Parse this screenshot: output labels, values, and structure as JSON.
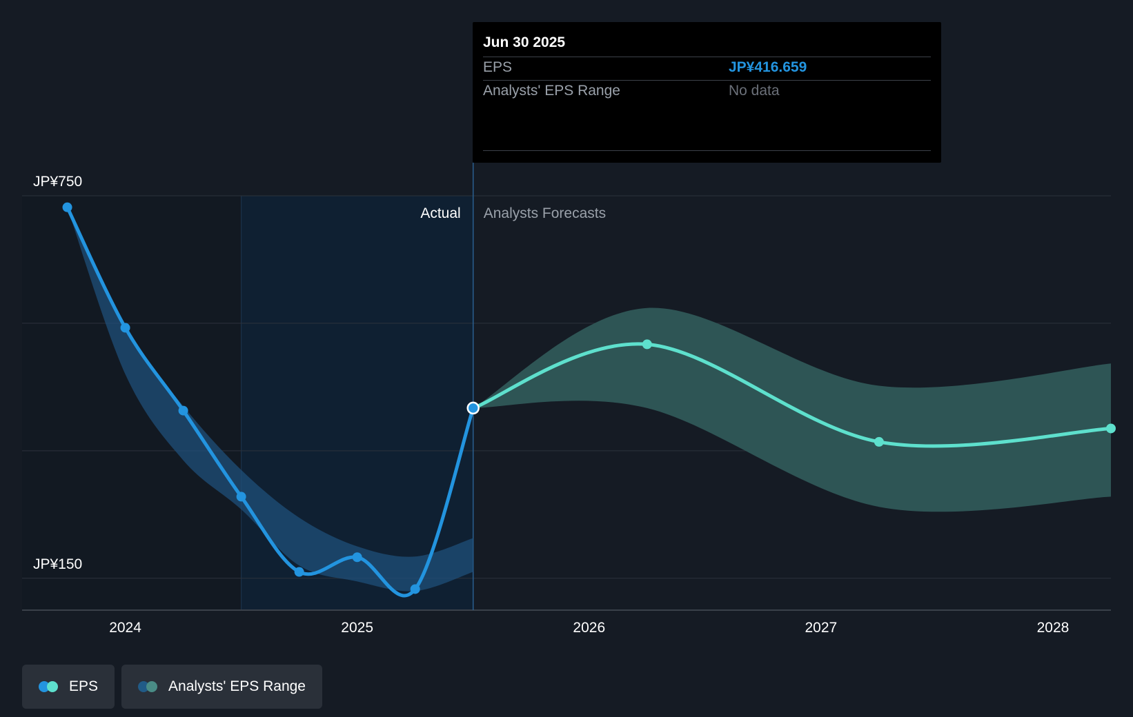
{
  "tooltip": {
    "date": "Jun 30 2025",
    "eps_label": "EPS",
    "eps_value": "JP¥416.659",
    "range_label": "Analysts' EPS Range",
    "range_value": "No data"
  },
  "legend": {
    "eps_label": "EPS",
    "range_label": "Analysts' EPS Range"
  },
  "colors": {
    "background": "#151b24",
    "actual_line": "#2394df",
    "forecast_line": "#5ee0cd",
    "actual_band": "#1f4f7a",
    "forecast_band": "#2e5555",
    "past_shade": "#0f2032"
  },
  "chart_data": {
    "type": "line",
    "y_axis_labels": [
      {
        "value": 750,
        "text": "JP¥750"
      },
      {
        "value": 150,
        "text": "JP¥150"
      }
    ],
    "x_ticks": [
      {
        "x": 2024.0,
        "label": "2024"
      },
      {
        "x": 2025.0,
        "label": "2025"
      },
      {
        "x": 2026.0,
        "label": "2026"
      },
      {
        "x": 2027.0,
        "label": "2027"
      },
      {
        "x": 2028.0,
        "label": "2028"
      }
    ],
    "xlim": [
      2023.555,
      2028.25
    ],
    "ylim": [
      100,
      750
    ],
    "gridlines": [
      150,
      350,
      550,
      750
    ],
    "region_labels": {
      "actual": "Actual",
      "forecast": "Analysts Forecasts"
    },
    "actual_shade_start": 2024.5,
    "divider_x": 2025.5,
    "series": [
      {
        "name": "EPS",
        "segment": "actual",
        "points": [
          {
            "x": 2023.75,
            "y": 732
          },
          {
            "x": 2024.0,
            "y": 543
          },
          {
            "x": 2024.25,
            "y": 413
          },
          {
            "x": 2024.5,
            "y": 278
          },
          {
            "x": 2024.75,
            "y": 160
          },
          {
            "x": 2025.0,
            "y": 183
          },
          {
            "x": 2025.25,
            "y": 133
          },
          {
            "x": 2025.5,
            "y": 417
          }
        ]
      },
      {
        "name": "EPS",
        "segment": "forecast",
        "points": [
          {
            "x": 2025.5,
            "y": 417
          },
          {
            "x": 2026.25,
            "y": 517
          },
          {
            "x": 2027.25,
            "y": 364
          },
          {
            "x": 2028.25,
            "y": 385
          }
        ]
      }
    ],
    "ranges": [
      {
        "name": "Analysts' EPS Range",
        "segment": "actual",
        "upper": [
          {
            "x": 2023.75,
            "y": 732
          },
          {
            "x": 2024.0,
            "y": 543
          },
          {
            "x": 2024.25,
            "y": 420
          },
          {
            "x": 2024.5,
            "y": 320
          },
          {
            "x": 2024.75,
            "y": 245
          },
          {
            "x": 2025.0,
            "y": 200
          },
          {
            "x": 2025.25,
            "y": 184
          },
          {
            "x": 2025.5,
            "y": 213
          }
        ],
        "lower": [
          {
            "x": 2023.75,
            "y": 732
          },
          {
            "x": 2024.0,
            "y": 470
          },
          {
            "x": 2024.25,
            "y": 335
          },
          {
            "x": 2024.5,
            "y": 258
          },
          {
            "x": 2024.75,
            "y": 170
          },
          {
            "x": 2025.0,
            "y": 145
          },
          {
            "x": 2025.25,
            "y": 130
          },
          {
            "x": 2025.5,
            "y": 160
          }
        ]
      },
      {
        "name": "Analysts' EPS Range",
        "segment": "forecast",
        "upper": [
          {
            "x": 2025.5,
            "y": 417
          },
          {
            "x": 2026.25,
            "y": 574
          },
          {
            "x": 2027.25,
            "y": 452
          },
          {
            "x": 2028.25,
            "y": 487
          }
        ],
        "lower": [
          {
            "x": 2025.5,
            "y": 417
          },
          {
            "x": 2026.25,
            "y": 417
          },
          {
            "x": 2027.25,
            "y": 262
          },
          {
            "x": 2028.25,
            "y": 278
          }
        ]
      }
    ]
  }
}
